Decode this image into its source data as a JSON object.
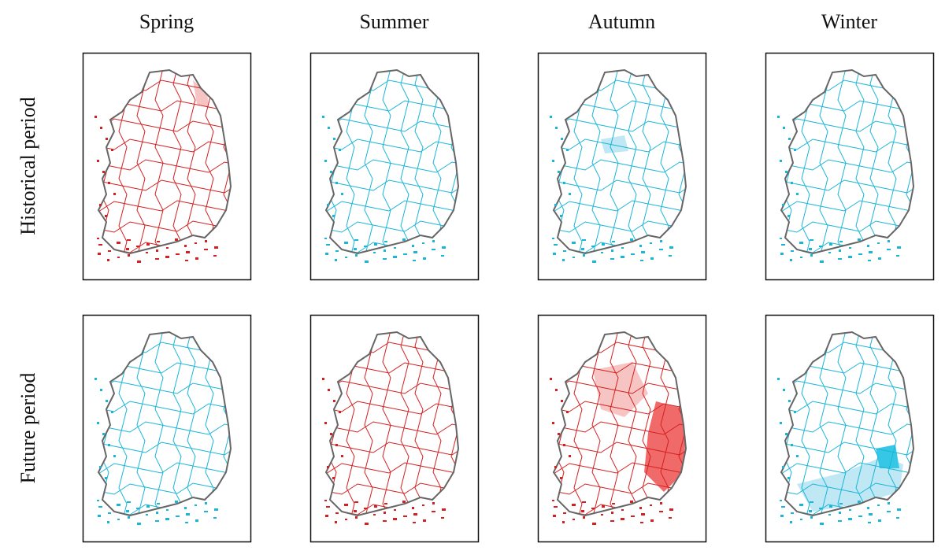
{
  "columns": [
    "Spring",
    "Summer",
    "Autumn",
    "Winter"
  ],
  "rows": [
    "Historical period",
    "Future period"
  ]
}
